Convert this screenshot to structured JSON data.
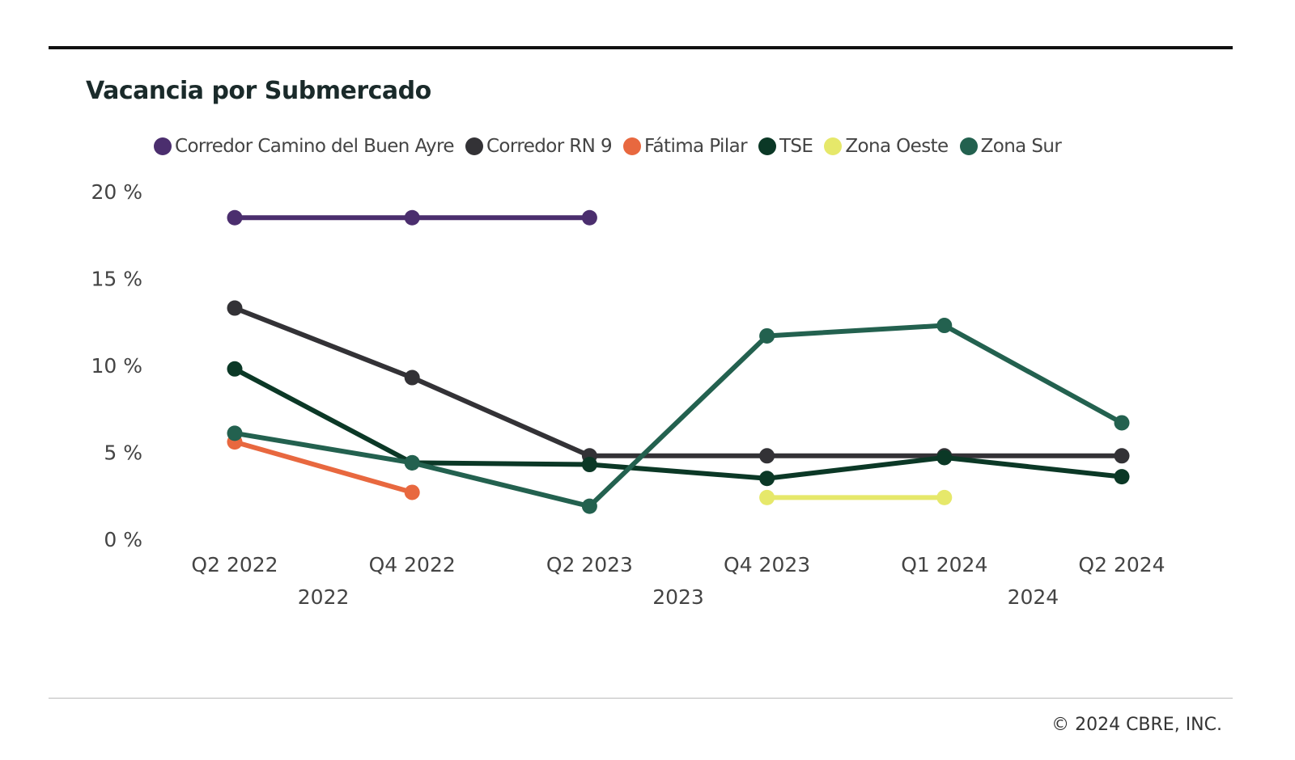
{
  "title": "Vacancia por Submercado",
  "footer": "© 2024 CBRE, INC.",
  "chart_data": {
    "type": "line",
    "title": "Vacancia por Submercado",
    "xlabel": "",
    "ylabel": "",
    "ylim": [
      0,
      20
    ],
    "yticks": [
      0,
      5,
      10,
      15,
      20
    ],
    "ytick_labels": [
      "0 %",
      "5 %",
      "10 %",
      "15 %",
      "20 %"
    ],
    "categories": [
      "Q2 2022",
      "Q4 2022",
      "Q2 2023",
      "Q4 2023",
      "Q1 2024",
      "Q2 2024"
    ],
    "year_groups": [
      {
        "label": "2022",
        "span": [
          0,
          1
        ]
      },
      {
        "label": "2023",
        "span": [
          2,
          3
        ]
      },
      {
        "label": "2024",
        "span": [
          4,
          5
        ]
      }
    ],
    "grid": false,
    "legend_position": "top",
    "series": [
      {
        "name": "Corredor Camino del Buen Ayre",
        "color": "#4b2e6e",
        "values": [
          18.5,
          18.5,
          18.5,
          null,
          null,
          null
        ]
      },
      {
        "name": "Corredor RN 9",
        "color": "#333236",
        "values": [
          13.3,
          9.3,
          4.8,
          4.8,
          4.8,
          4.8
        ]
      },
      {
        "name": "Fátima Pilar",
        "color": "#e8683f",
        "values": [
          5.6,
          2.7,
          null,
          null,
          null,
          null
        ]
      },
      {
        "name": "TSE",
        "color": "#0b3826",
        "values": [
          9.8,
          4.4,
          4.3,
          3.5,
          4.7,
          3.6
        ]
      },
      {
        "name": "Zona Oeste",
        "color": "#e6e86a",
        "values": [
          null,
          null,
          null,
          2.4,
          2.4,
          null
        ]
      },
      {
        "name": "Zona Sur",
        "color": "#23614f",
        "values": [
          6.1,
          4.4,
          1.9,
          11.7,
          12.3,
          6.7
        ]
      }
    ]
  }
}
